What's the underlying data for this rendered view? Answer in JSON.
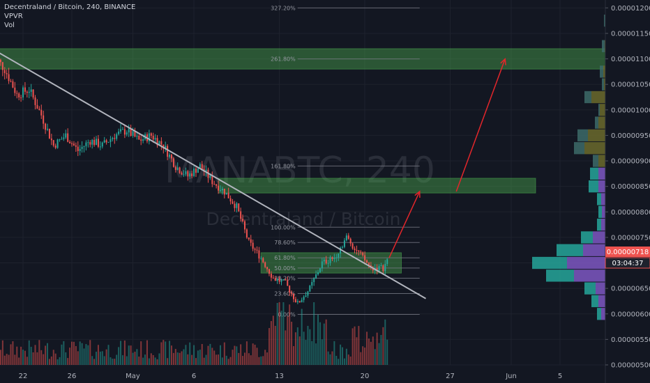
{
  "header": {
    "symbol_line": "Decentraland / Bitcoin, 240, BINANCE",
    "indicator_1": "VPVR",
    "indicator_2": "Vol"
  },
  "watermark": {
    "ticker": "MANABTC, 240",
    "name": "Decentraland / Bitcoin"
  },
  "colors": {
    "background": "#131722",
    "up": "#26a69a",
    "down": "#ef5350",
    "zone": "#4caf50",
    "trendline": "#b2b5be",
    "arrow": "#e3262b",
    "price_badge": "#ef5350",
    "vpvr_up": "#26a69a",
    "vpvr_down": "#7e57c2",
    "vpvr_value_area_up": "#3d6b69",
    "vpvr_value_area_down": "#6b6a2c"
  },
  "price_badge": {
    "price": "0.00000718",
    "countdown": "03:04:37"
  },
  "chart_data": {
    "type": "candlestick",
    "x_axis": {
      "labels": [
        {
          "label": "22",
          "day": 22
        },
        {
          "label": "26",
          "day": 26
        },
        {
          "label": "May",
          "day": 31
        },
        {
          "label": "6",
          "day": 36
        },
        {
          "label": "13",
          "day": 43
        },
        {
          "label": "20",
          "day": 50
        },
        {
          "label": "27",
          "day": 57
        },
        {
          "label": "Jun",
          "day": 62
        },
        {
          "label": "5",
          "day": 66
        }
      ]
    },
    "y_axis": {
      "range": [
        5e-06,
        1.21e-05
      ],
      "ticks": [
        1.2e-05,
        1.15e-05,
        1.1e-05,
        1.05e-05,
        1e-05,
        9.5e-06,
        9e-06,
        8.5e-06,
        8e-06,
        7.5e-06,
        7e-06,
        6.5e-06,
        6e-06,
        5.5e-06,
        5e-06
      ],
      "tick_labels": [
        "0.00001200",
        "0.00001150",
        "0.00001100",
        "0.00001050",
        "0.00001000",
        "0.00000950",
        "0.00000900",
        "0.00000850",
        "0.00000800",
        "0.00000750",
        "0.00000700",
        "0.00000650",
        "0.00000600",
        "0.00000550",
        "0.00000500"
      ]
    },
    "price_path": [
      [
        19.5,
        1.11e-05
      ],
      [
        20.5,
        1.08e-05
      ],
      [
        21.5,
        1.03e-05
      ],
      [
        22.5,
        1.04e-05
      ],
      [
        23.5,
        9.9e-06
      ],
      [
        24.5,
        9.3e-06
      ],
      [
        25.5,
        9.5e-06
      ],
      [
        26.5,
        9.2e-06
      ],
      [
        27.5,
        9.4e-06
      ],
      [
        28.5,
        9.3e-06
      ],
      [
        29.5,
        9.5e-06
      ],
      [
        30.5,
        9.6e-06
      ],
      [
        31.5,
        9.4e-06
      ],
      [
        32.5,
        9.5e-06
      ],
      [
        33.5,
        9.3e-06
      ],
      [
        34.5,
        8.9e-06
      ],
      [
        35.5,
        8.7e-06
      ],
      [
        36.5,
        8.9e-06
      ],
      [
        37.5,
        8.6e-06
      ],
      [
        38.5,
        8.4e-06
      ],
      [
        39.5,
        8.1e-06
      ],
      [
        40.5,
        7.4e-06
      ],
      [
        41.5,
        7.1e-06
      ],
      [
        42.5,
        6.7e-06
      ],
      [
        43.5,
        6.6e-06
      ],
      [
        44.5,
        6.2e-06
      ],
      [
        45.5,
        6.5e-06
      ],
      [
        46.5,
        7e-06
      ],
      [
        47.5,
        7.1e-06
      ],
      [
        48.5,
        7.5e-06
      ],
      [
        49.5,
        7.2e-06
      ],
      [
        50.5,
        6.9e-06
      ],
      [
        51.5,
        6.9e-06
      ],
      [
        52.0,
        7.1e-06
      ]
    ],
    "volume_axis_max": 100,
    "trendline": {
      "from": [
        18.0,
        1.14e-05
      ],
      "to": [
        55.0,
        6.3e-06
      ]
    },
    "zones": [
      {
        "from_day": 18.0,
        "to_day": 71.0,
        "low": 1.08e-05,
        "high": 1.12e-05
      },
      {
        "from_day": 38.0,
        "to_day": 64.0,
        "low": 8.37e-06,
        "high": 8.66e-06
      },
      {
        "from_day": 41.5,
        "to_day": 53.0,
        "low": 6.8e-06,
        "high": 7.2e-06
      }
    ],
    "fibonacci": {
      "from_day": 44.5,
      "to_day": 54.5,
      "levels": [
        {
          "label": "327.20%",
          "price": 1.2e-05
        },
        {
          "label": "261.80%",
          "price": 1.1e-05
        },
        {
          "label": "161.80%",
          "price": 8.9e-06
        },
        {
          "label": "100.00%",
          "price": 7.7e-06
        },
        {
          "label": "78.60%",
          "price": 7.4e-06
        },
        {
          "label": "61.80%",
          "price": 7.1e-06
        },
        {
          "label": "50.00%",
          "price": 6.9e-06
        },
        {
          "label": "38.20%",
          "price": 6.7e-06
        },
        {
          "label": "23.60%",
          "price": 6.4e-06
        },
        {
          "label": "0.00%",
          "price": 5.99e-06
        }
      ]
    },
    "projection_arrows": [
      {
        "from": [
          52.0,
          7.1e-06
        ],
        "to": [
          54.5,
          8.4e-06
        ]
      },
      {
        "from": [
          57.5,
          8.4e-06
        ],
        "to": [
          61.5,
          1.1e-05
        ]
      }
    ],
    "volume_profile": {
      "bins": [
        {
          "price": 1.175e-05,
          "up": 2,
          "down": 0
        },
        {
          "price": 1.125e-05,
          "up": 5,
          "down": 1
        },
        {
          "price": 1.075e-05,
          "up": 8,
          "down": 3
        },
        {
          "price": 1.05e-05,
          "up": 5,
          "down": 2
        },
        {
          "price": 1.025e-05,
          "up": 30,
          "down": 20
        },
        {
          "price": 1e-05,
          "up": 10,
          "down": 8
        },
        {
          "price": 9.75e-06,
          "up": 15,
          "down": 10
        },
        {
          "price": 9.5e-06,
          "up": 40,
          "down": 25
        },
        {
          "price": 9.25e-06,
          "up": 45,
          "down": 30
        },
        {
          "price": 9e-06,
          "up": 18,
          "down": 10
        },
        {
          "price": 8.75e-06,
          "up": 22,
          "down": 10
        },
        {
          "price": 8.5e-06,
          "up": 24,
          "down": 10
        },
        {
          "price": 8.25e-06,
          "up": 12,
          "down": 6
        },
        {
          "price": 8e-06,
          "up": 10,
          "down": 5
        },
        {
          "price": 7.75e-06,
          "up": 12,
          "down": 6
        },
        {
          "price": 7.5e-06,
          "up": 35,
          "down": 18
        },
        {
          "price": 7.25e-06,
          "up": 70,
          "down": 32
        },
        {
          "price": 7e-06,
          "up": 105,
          "down": 55
        },
        {
          "price": 6.75e-06,
          "up": 85,
          "down": 45
        },
        {
          "price": 6.5e-06,
          "up": 30,
          "down": 14
        },
        {
          "price": 6.25e-06,
          "up": 20,
          "down": 10
        },
        {
          "price": 6e-06,
          "up": 12,
          "down": 6
        }
      ]
    }
  }
}
